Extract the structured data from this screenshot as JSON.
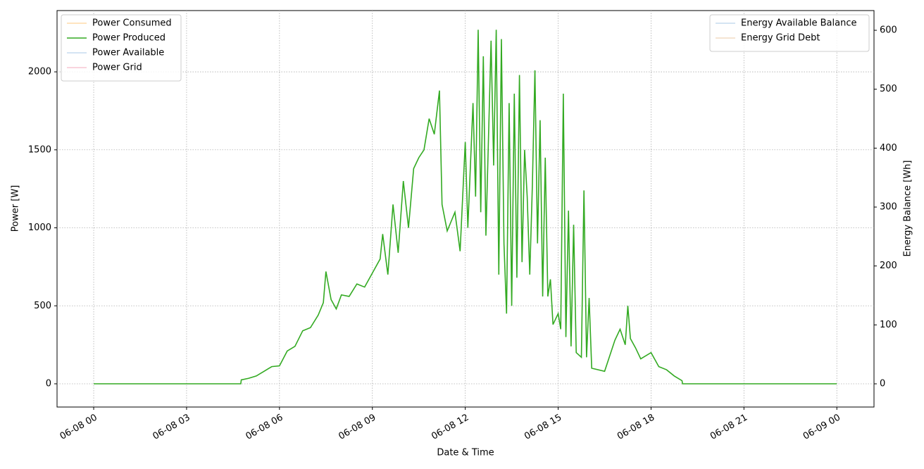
{
  "chart_data": {
    "type": "line",
    "xlabel": "Date & Time",
    "ylabel": "Power [W]",
    "y2label": "Energy Balance [Wh]",
    "x": [
      "06-08 00:00",
      "06-08 04:45",
      "06-08 04:46",
      "06-08 05:00",
      "06-08 05:15",
      "06-08 05:30",
      "06-08 05:45",
      "06-08 06:00",
      "06-08 06:15",
      "06-08 06:30",
      "06-08 06:45",
      "06-08 07:00",
      "06-08 07:15",
      "06-08 07:25",
      "06-08 07:30",
      "06-08 07:40",
      "06-08 07:50",
      "06-08 08:00",
      "06-08 08:15",
      "06-08 08:30",
      "06-08 08:45",
      "06-08 09:00",
      "06-08 09:15",
      "06-08 09:20",
      "06-08 09:30",
      "06-08 09:40",
      "06-08 09:50",
      "06-08 10:00",
      "06-08 10:10",
      "06-08 10:20",
      "06-08 10:30",
      "06-08 10:40",
      "06-08 10:50",
      "06-08 11:00",
      "06-08 11:10",
      "06-08 11:15",
      "06-08 11:25",
      "06-08 11:40",
      "06-08 11:50",
      "06-08 12:00",
      "06-08 12:05",
      "06-08 12:15",
      "06-08 12:20",
      "06-08 12:25",
      "06-08 12:30",
      "06-08 12:35",
      "06-08 12:40",
      "06-08 12:50",
      "06-08 12:55",
      "06-08 13:00",
      "06-08 13:05",
      "06-08 13:10",
      "06-08 13:15",
      "06-08 13:20",
      "06-08 13:25",
      "06-08 13:30",
      "06-08 13:35",
      "06-08 13:40",
      "06-08 13:45",
      "06-08 13:50",
      "06-08 13:55",
      "06-08 14:00",
      "06-08 14:05",
      "06-08 14:10",
      "06-08 14:15",
      "06-08 14:20",
      "06-08 14:25",
      "06-08 14:30",
      "06-08 14:35",
      "06-08 14:40",
      "06-08 14:45",
      "06-08 14:50",
      "06-08 15:00",
      "06-08 15:05",
      "06-08 15:10",
      "06-08 15:15",
      "06-08 15:20",
      "06-08 15:25",
      "06-08 15:30",
      "06-08 15:35",
      "06-08 15:45",
      "06-08 15:50",
      "06-08 15:55",
      "06-08 16:00",
      "06-08 16:05",
      "06-08 16:30",
      "06-08 16:50",
      "06-08 17:00",
      "06-08 17:10",
      "06-08 17:15",
      "06-08 17:20",
      "06-08 17:30",
      "06-08 17:40",
      "06-08 18:00",
      "06-08 18:15",
      "06-08 18:30",
      "06-08 18:45",
      "06-08 19:00",
      "06-08 19:01",
      "06-09 00:00"
    ],
    "series": [
      {
        "name": "Power Consumed",
        "color": "#ffdcaa",
        "values": [
          null,
          null,
          null,
          null,
          null,
          null,
          null,
          null,
          null,
          null,
          null,
          null,
          null,
          null,
          null,
          null,
          null,
          null,
          null,
          null,
          null,
          null,
          null,
          null,
          null,
          null,
          null,
          null,
          null,
          null,
          null,
          null,
          null,
          null,
          null,
          null,
          null,
          null,
          null,
          null,
          null,
          null,
          null,
          null,
          null,
          null,
          null,
          null,
          null,
          null,
          null,
          null,
          null,
          null,
          null,
          null,
          null,
          null,
          null,
          null,
          null,
          null,
          null,
          null,
          null,
          null,
          null,
          null,
          null,
          null,
          null,
          null,
          null,
          null,
          null,
          null,
          null,
          null,
          null,
          null,
          null,
          null,
          null,
          null,
          null,
          null,
          null,
          null,
          null,
          null,
          null,
          null,
          null,
          null,
          null,
          null,
          null,
          null,
          null,
          null
        ]
      },
      {
        "name": "Power Produced",
        "color": "#33aa22",
        "values": [
          0,
          0,
          25,
          35,
          50,
          80,
          110,
          115,
          210,
          240,
          340,
          360,
          440,
          520,
          720,
          540,
          480,
          570,
          560,
          640,
          620,
          710,
          800,
          960,
          700,
          1150,
          840,
          1300,
          1000,
          1380,
          1450,
          1500,
          1700,
          1600,
          1880,
          1150,
          980,
          1100,
          850,
          1550,
          1000,
          1800,
          1200,
          2270,
          1100,
          2100,
          950,
          2200,
          1400,
          2270,
          700,
          2210,
          900,
          450,
          1800,
          500,
          1860,
          680,
          1980,
          780,
          1500,
          1200,
          700,
          1270,
          2010,
          900,
          1690,
          560,
          1450,
          560,
          670,
          380,
          450,
          350,
          1860,
          300,
          1110,
          240,
          1020,
          200,
          170,
          1240,
          170,
          550,
          100,
          80,
          280,
          350,
          250,
          500,
          290,
          230,
          160,
          200,
          110,
          90,
          50,
          20,
          0,
          0
        ]
      },
      {
        "name": "Power Available",
        "color": "#c6dbef",
        "values": [
          null,
          null,
          null,
          null,
          null,
          null,
          null,
          null,
          null,
          null,
          null,
          null,
          null,
          null,
          null,
          null,
          null,
          null,
          null,
          null,
          null,
          null,
          null,
          null,
          null,
          null,
          null,
          null,
          null,
          null,
          null,
          null,
          null,
          null,
          null,
          null,
          null,
          null,
          null,
          null,
          null,
          null,
          null,
          null,
          null,
          null,
          null,
          null,
          null,
          null,
          null,
          null,
          null,
          null,
          null,
          null,
          null,
          null,
          null,
          null,
          null,
          null,
          null,
          null,
          null,
          null,
          null,
          null,
          null,
          null,
          null,
          null,
          null,
          null,
          null,
          null,
          null,
          null,
          null,
          null,
          null,
          null,
          null,
          null,
          null,
          null,
          null,
          null,
          null,
          null,
          null,
          null,
          null,
          null,
          null,
          null,
          null,
          null,
          null,
          null
        ]
      },
      {
        "name": "Power Grid",
        "color": "#f7c6d4",
        "values": [
          null,
          null,
          null,
          null,
          null,
          null,
          null,
          null,
          null,
          null,
          null,
          null,
          null,
          null,
          null,
          null,
          null,
          null,
          null,
          null,
          null,
          null,
          null,
          null,
          null,
          null,
          null,
          null,
          null,
          null,
          null,
          null,
          null,
          null,
          null,
          null,
          null,
          null,
          null,
          null,
          null,
          null,
          null,
          null,
          null,
          null,
          null,
          null,
          null,
          null,
          null,
          null,
          null,
          null,
          null,
          null,
          null,
          null,
          null,
          null,
          null,
          null,
          null,
          null,
          null,
          null,
          null,
          null,
          null,
          null,
          null,
          null,
          null,
          null,
          null,
          null,
          null,
          null,
          null,
          null,
          null,
          null,
          null,
          null,
          null,
          null,
          null,
          null,
          null,
          null,
          null,
          null,
          null,
          null,
          null,
          null,
          null,
          null,
          null,
          null
        ]
      },
      {
        "name": "Energy Available Balance",
        "color": "#c6dbef",
        "axis": "y2",
        "values": [
          null,
          null,
          null,
          null,
          null,
          null,
          null,
          null,
          null,
          null,
          null,
          null,
          null,
          null,
          null,
          null,
          null,
          null,
          null,
          null,
          null,
          null,
          null,
          null,
          null,
          null,
          null,
          null,
          null,
          null,
          null,
          null,
          null,
          null,
          null,
          null,
          null,
          null,
          null,
          null,
          null,
          null,
          null,
          null,
          null,
          null,
          null,
          null,
          null,
          null,
          null,
          null,
          null,
          null,
          null,
          null,
          null,
          null,
          null,
          null,
          null,
          null,
          null,
          null,
          null,
          null,
          null,
          null,
          null,
          null,
          null,
          null,
          null,
          null,
          null,
          null,
          null,
          null,
          null,
          null,
          null,
          null,
          null,
          null,
          null,
          null,
          null,
          null,
          null,
          null,
          null,
          null,
          null,
          null,
          null,
          null,
          null,
          null,
          null,
          null
        ]
      },
      {
        "name": "Energy Grid Debt",
        "color": "#f2dcc4",
        "axis": "y2",
        "values": [
          null,
          null,
          null,
          null,
          null,
          null,
          null,
          null,
          null,
          null,
          null,
          null,
          null,
          null,
          null,
          null,
          null,
          null,
          null,
          null,
          null,
          null,
          null,
          null,
          null,
          null,
          null,
          null,
          null,
          null,
          null,
          null,
          null,
          null,
          null,
          null,
          null,
          null,
          null,
          null,
          null,
          null,
          null,
          null,
          null,
          null,
          null,
          null,
          null,
          null,
          null,
          null,
          null,
          null,
          null,
          null,
          null,
          null,
          null,
          null,
          null,
          null,
          null,
          null,
          null,
          null,
          null,
          null,
          null,
          null,
          null,
          null,
          null,
          null,
          null,
          null,
          null,
          null,
          null,
          null,
          null,
          null,
          null,
          null,
          null,
          null,
          null,
          null,
          null,
          null,
          null,
          null,
          null,
          null,
          null,
          null,
          null,
          null,
          null,
          null
        ]
      }
    ],
    "xlim": [
      "06-07 22:49",
      "06-09 01:12"
    ],
    "xticks": [
      "06-08 00",
      "06-08 03",
      "06-08 06",
      "06-08 09",
      "06-08 12",
      "06-08 15",
      "06-08 18",
      "06-08 21",
      "06-09 00"
    ],
    "ylim": [
      -149,
      2393
    ],
    "yticks": [
      0,
      500,
      1000,
      1500,
      2000
    ],
    "y2lim": [
      -39.4,
      633.5
    ],
    "y2ticks": [
      0,
      100,
      200,
      300,
      400,
      500,
      600
    ],
    "grid": true,
    "legend": "upper left",
    "legend2": "upper right"
  }
}
